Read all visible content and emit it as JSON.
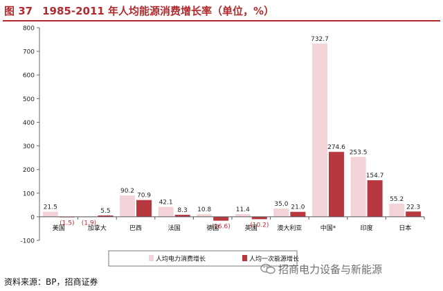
{
  "figure": {
    "number": "图 37",
    "title": "1985-2011 年人均能源消费增长率（单位，%）"
  },
  "chart_data": {
    "type": "bar",
    "title": "",
    "xlabel": "",
    "ylabel": "",
    "ylim": [
      -100,
      800
    ],
    "yticks": [
      -100,
      0,
      100,
      200,
      300,
      400,
      500,
      600,
      700,
      800
    ],
    "grid": false,
    "legend_position": "bottom",
    "categories": [
      "美国",
      "加拿大",
      "巴西",
      "法国",
      "德国",
      "英国",
      "澳大利亚",
      "中国*",
      "印度",
      "日本"
    ],
    "series": [
      {
        "name": "人均电力消费增长",
        "color": "#f2d3d7",
        "values": [
          21.5,
          -1.9,
          90.2,
          42.1,
          10.8,
          11.4,
          35.0,
          732.7,
          253.5,
          55.2
        ],
        "labels": [
          "21.5",
          "(1.9)",
          "90.2",
          "42.1",
          "10.8",
          "11.4",
          "35.0",
          "732.7",
          "253.5",
          "55.2"
        ]
      },
      {
        "name": "人均一次能源增长",
        "color": "#b8383f",
        "values": [
          -1.5,
          5.5,
          70.9,
          8.3,
          -16.6,
          -10.2,
          21.0,
          274.6,
          154.7,
          22.3
        ],
        "labels": [
          "(1.5)",
          "5.5",
          "70.9",
          "8.3",
          "(16.6)",
          "(10.2)",
          "21.0",
          "274.6",
          "154.7",
          "22.3"
        ]
      }
    ],
    "negative_label_color": "#c0282e"
  },
  "source": "资料来源：BP，招商证券",
  "watermark": "招商电力设备与新能源"
}
